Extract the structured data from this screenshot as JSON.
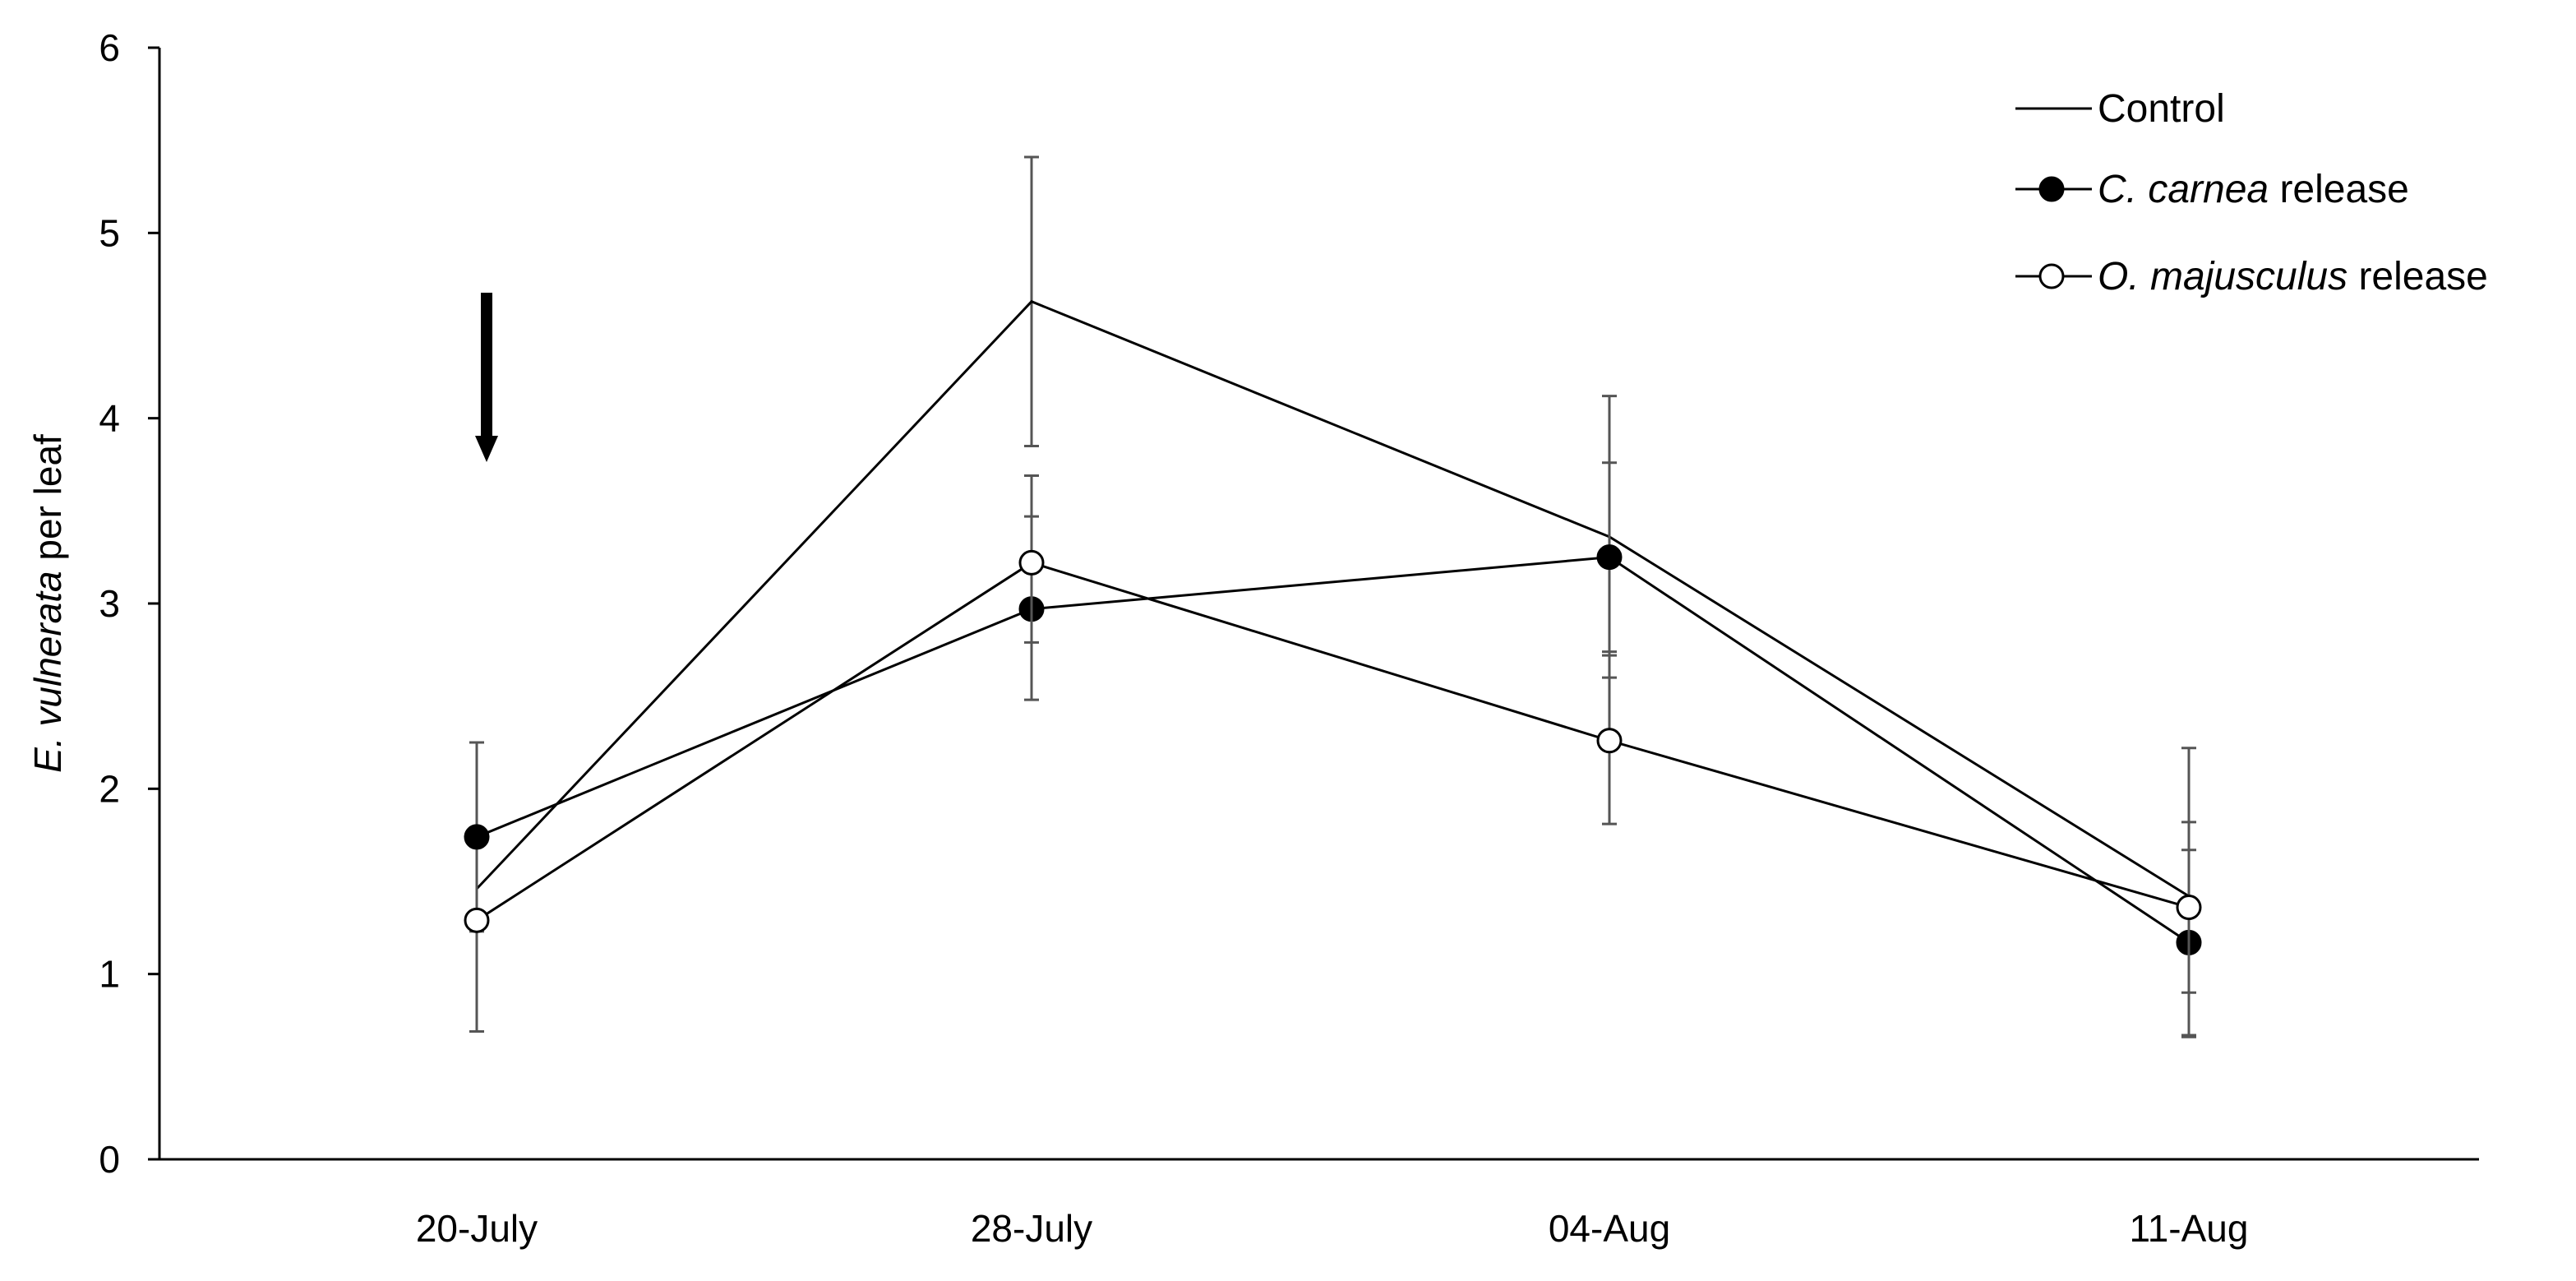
{
  "chart_data": {
    "type": "line",
    "categories": [
      "20-July",
      "28-July",
      "04-Aug",
      "11-Aug"
    ],
    "ylim": [
      0,
      6
    ],
    "yticks": [
      "0",
      "1",
      "2",
      "3",
      "4",
      "5",
      "6"
    ],
    "ylabel": {
      "italic": "E. vulnerata",
      "normal": " per leaf"
    },
    "grid": false,
    "legend_position": "top-right",
    "annotation": "arrow-pointing-down at 20-July",
    "series": [
      {
        "name": "Control",
        "legend": {
          "italic": "",
          "normal": "Control"
        },
        "marker": "none",
        "values": [
          1.46,
          4.63,
          3.36,
          1.42
        ],
        "err_high": [
          1.46,
          5.41,
          4.12,
          2.22
        ],
        "err_low": [
          1.46,
          3.85,
          2.6,
          0.66
        ]
      },
      {
        "name": "C. carnea release",
        "legend": {
          "italic": "C. carnea",
          "normal": " release"
        },
        "marker": "filled-circle",
        "values": [
          1.74,
          2.97,
          3.25,
          1.17
        ],
        "err_high": [
          2.25,
          3.47,
          3.76,
          1.67
        ],
        "err_low": [
          1.23,
          2.48,
          2.74,
          0.67
        ]
      },
      {
        "name": "O. majusculus release",
        "legend": {
          "italic": "O. majusculus",
          "normal": " release"
        },
        "marker": "open-circle",
        "values": [
          1.29,
          3.22,
          2.26,
          1.36
        ],
        "err_high": [
          1.29,
          3.69,
          2.72,
          1.82
        ],
        "err_low": [
          0.69,
          2.79,
          1.81,
          0.9
        ]
      }
    ]
  }
}
